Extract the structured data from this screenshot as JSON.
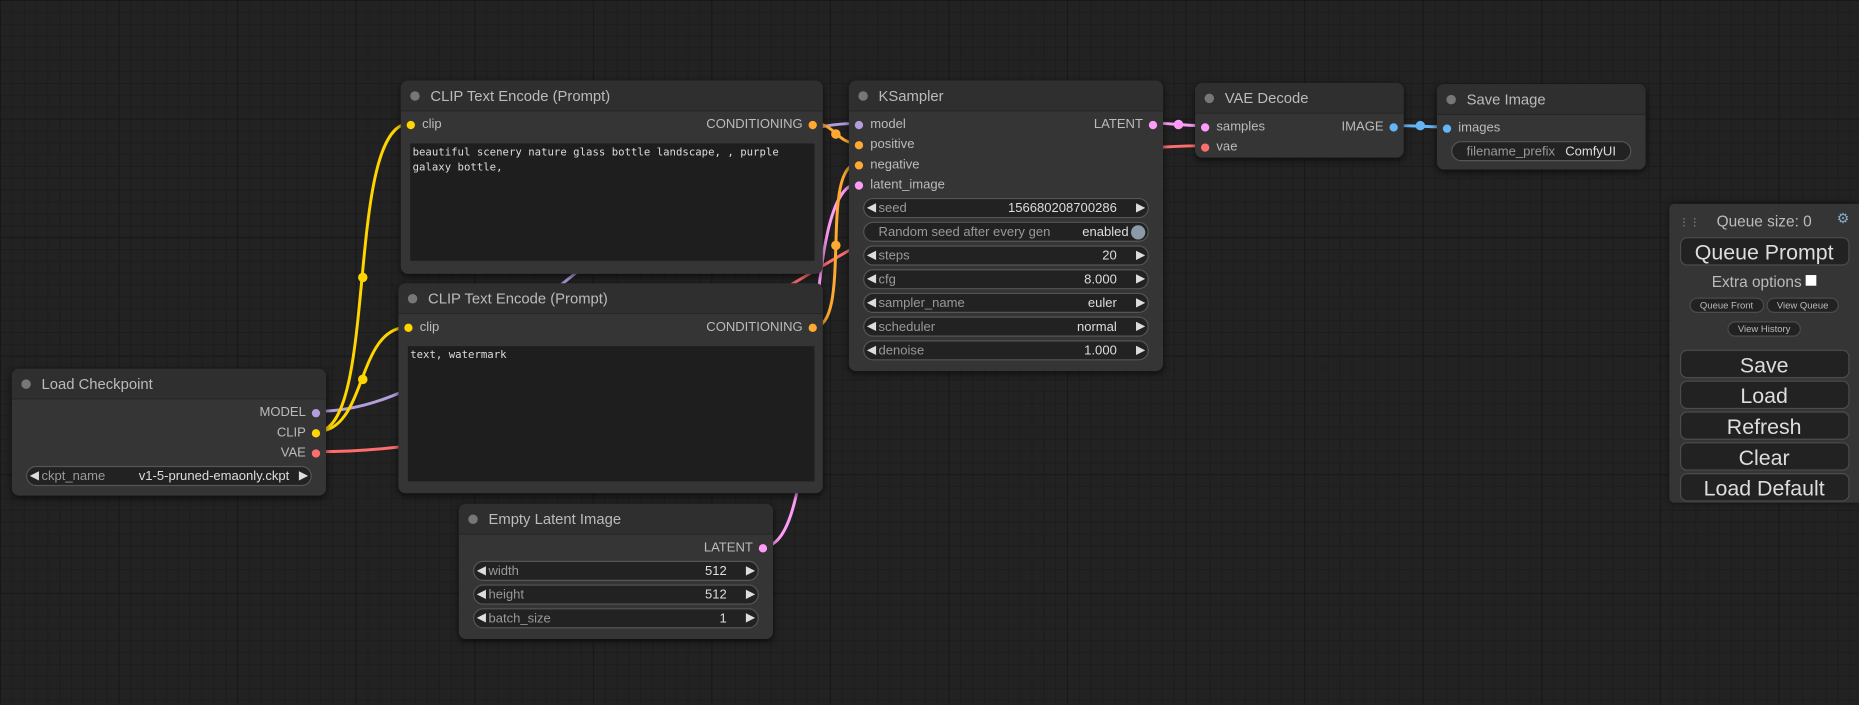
{
  "colors": {
    "model": "#b39ddb",
    "clip": "#ffd500",
    "vae": "#ff6e6e",
    "conditioning": "#ffa931",
    "latent": "#ff9cf9",
    "image": "#64b5f6"
  },
  "nodes": {
    "load_checkpoint": {
      "title": "Load Checkpoint",
      "outputs": [
        "MODEL",
        "CLIP",
        "VAE"
      ],
      "ckpt_label": "ckpt_name",
      "ckpt_value": "v1-5-pruned-emaonly.ckpt"
    },
    "clip_pos": {
      "title": "CLIP Text Encode (Prompt)",
      "input": "clip",
      "output": "CONDITIONING",
      "text": "beautiful scenery nature glass bottle landscape, , purple galaxy bottle,"
    },
    "clip_neg": {
      "title": "CLIP Text Encode (Prompt)",
      "input": "clip",
      "output": "CONDITIONING",
      "text": "text, watermark"
    },
    "empty_latent": {
      "title": "Empty Latent Image",
      "output": "LATENT",
      "widgets": [
        {
          "label": "width",
          "value": "512"
        },
        {
          "label": "height",
          "value": "512"
        },
        {
          "label": "batch_size",
          "value": "1"
        }
      ]
    },
    "ksampler": {
      "title": "KSampler",
      "inputs": [
        "model",
        "positive",
        "negative",
        "latent_image"
      ],
      "output": "LATENT",
      "seed": {
        "label": "seed",
        "value": "156680208700286"
      },
      "random_seed": {
        "label": "Random seed after every gen",
        "value": "enabled"
      },
      "widgets": [
        {
          "label": "steps",
          "value": "20"
        },
        {
          "label": "cfg",
          "value": "8.000"
        },
        {
          "label": "sampler_name",
          "value": "euler"
        },
        {
          "label": "scheduler",
          "value": "normal"
        },
        {
          "label": "denoise",
          "value": "1.000"
        }
      ]
    },
    "vae_decode": {
      "title": "VAE Decode",
      "inputs": [
        "samples",
        "vae"
      ],
      "output": "IMAGE"
    },
    "save_image": {
      "title": "Save Image",
      "input": "images",
      "prefix_label": "filename_prefix",
      "prefix_value": "ComfyUI"
    }
  },
  "panel": {
    "queue_size": "Queue size: 0",
    "queue_prompt": "Queue Prompt",
    "extra_options": "Extra options",
    "queue_front": "Queue Front",
    "view_queue": "View Queue",
    "view_history": "View History",
    "save": "Save",
    "load": "Load",
    "refresh": "Refresh",
    "clear": "Clear",
    "load_default": "Load Default"
  }
}
